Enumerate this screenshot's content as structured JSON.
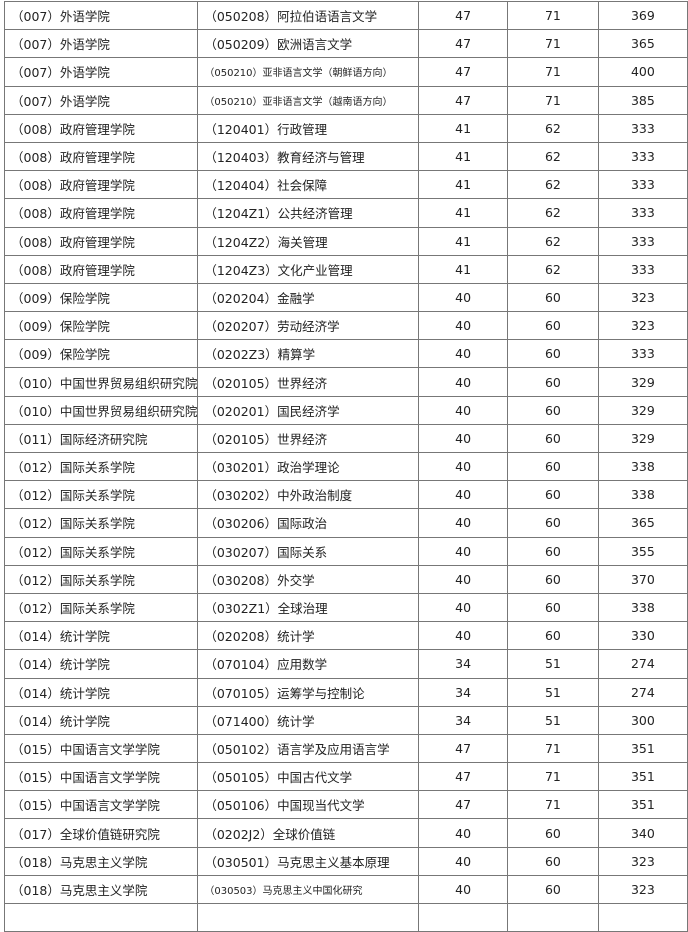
{
  "rows": [
    [
      "（007）外语学院",
      "（050208）阿拉伯语语言文学",
      "47",
      "71",
      "369"
    ],
    [
      "（007）外语学院",
      "（050209）欧洲语言文学",
      "47",
      "71",
      "365"
    ],
    [
      "（007）外语学院",
      "（050210）亚非语言文学（朝鲜语方向）",
      "47",
      "71",
      "400"
    ],
    [
      "（007）外语学院",
      "（050210）亚非语言文学（越南语方向）",
      "47",
      "71",
      "385"
    ],
    [
      "（008）政府管理学院",
      "（120401）行政管理",
      "41",
      "62",
      "333"
    ],
    [
      "（008）政府管理学院",
      "（120403）教育经济与管理",
      "41",
      "62",
      "333"
    ],
    [
      "（008）政府管理学院",
      "（120404）社会保障",
      "41",
      "62",
      "333"
    ],
    [
      "（008）政府管理学院",
      "（1204Z1）公共经济管理",
      "41",
      "62",
      "333"
    ],
    [
      "（008）政府管理学院",
      "（1204Z2）海关管理",
      "41",
      "62",
      "333"
    ],
    [
      "（008）政府管理学院",
      "（1204Z3）文化产业管理",
      "41",
      "62",
      "333"
    ],
    [
      "（009）保险学院",
      "（020204）金融学",
      "40",
      "60",
      "323"
    ],
    [
      "（009）保险学院",
      "（020207）劳动经济学",
      "40",
      "60",
      "323"
    ],
    [
      "（009）保险学院",
      "（0202Z3）精算学",
      "40",
      "60",
      "333"
    ],
    [
      "（010）中国世界贸易组织研究院",
      "（020105）世界经济",
      "40",
      "60",
      "329"
    ],
    [
      "（010）中国世界贸易组织研究院",
      "（020201）国民经济学",
      "40",
      "60",
      "329"
    ],
    [
      "（011）国际经济研究院",
      "（020105）世界经济",
      "40",
      "60",
      "329"
    ],
    [
      "（012）国际关系学院",
      "（030201）政治学理论",
      "40",
      "60",
      "338"
    ],
    [
      "（012）国际关系学院",
      "（030202）中外政治制度",
      "40",
      "60",
      "338"
    ],
    [
      "（012）国际关系学院",
      "（030206）国际政治",
      "40",
      "60",
      "365"
    ],
    [
      "（012）国际关系学院",
      "（030207）国际关系",
      "40",
      "60",
      "355"
    ],
    [
      "（012）国际关系学院",
      "（030208）外交学",
      "40",
      "60",
      "370"
    ],
    [
      "（012）国际关系学院",
      "（0302Z1）全球治理",
      "40",
      "60",
      "338"
    ],
    [
      "（014）统计学院",
      "（020208）统计学",
      "40",
      "60",
      "330"
    ],
    [
      "（014）统计学院",
      "（070104）应用数学",
      "34",
      "51",
      "274"
    ],
    [
      "（014）统计学院",
      "（070105）运筹学与控制论",
      "34",
      "51",
      "274"
    ],
    [
      "（014）统计学院",
      "（071400）统计学",
      "34",
      "51",
      "300"
    ],
    [
      "（015）中国语言文学学院",
      "（050102）语言学及应用语言学",
      "47",
      "71",
      "351"
    ],
    [
      "（015）中国语言文学学院",
      "（050105）中国古代文学",
      "47",
      "71",
      "351"
    ],
    [
      "（015）中国语言文学学院",
      "（050106）中国现当代文学",
      "47",
      "71",
      "351"
    ],
    [
      "（017）全球价值链研究院",
      "（0202J2）全球价值链",
      "40",
      "60",
      "340"
    ],
    [
      "（018）马克思主义学院",
      "（030501）马克思主义基本原理",
      "40",
      "60",
      "323"
    ],
    [
      "（018）马克思主义学院",
      "（030503）马克思主义中国化研究",
      "40",
      "60",
      "323"
    ]
  ]
}
